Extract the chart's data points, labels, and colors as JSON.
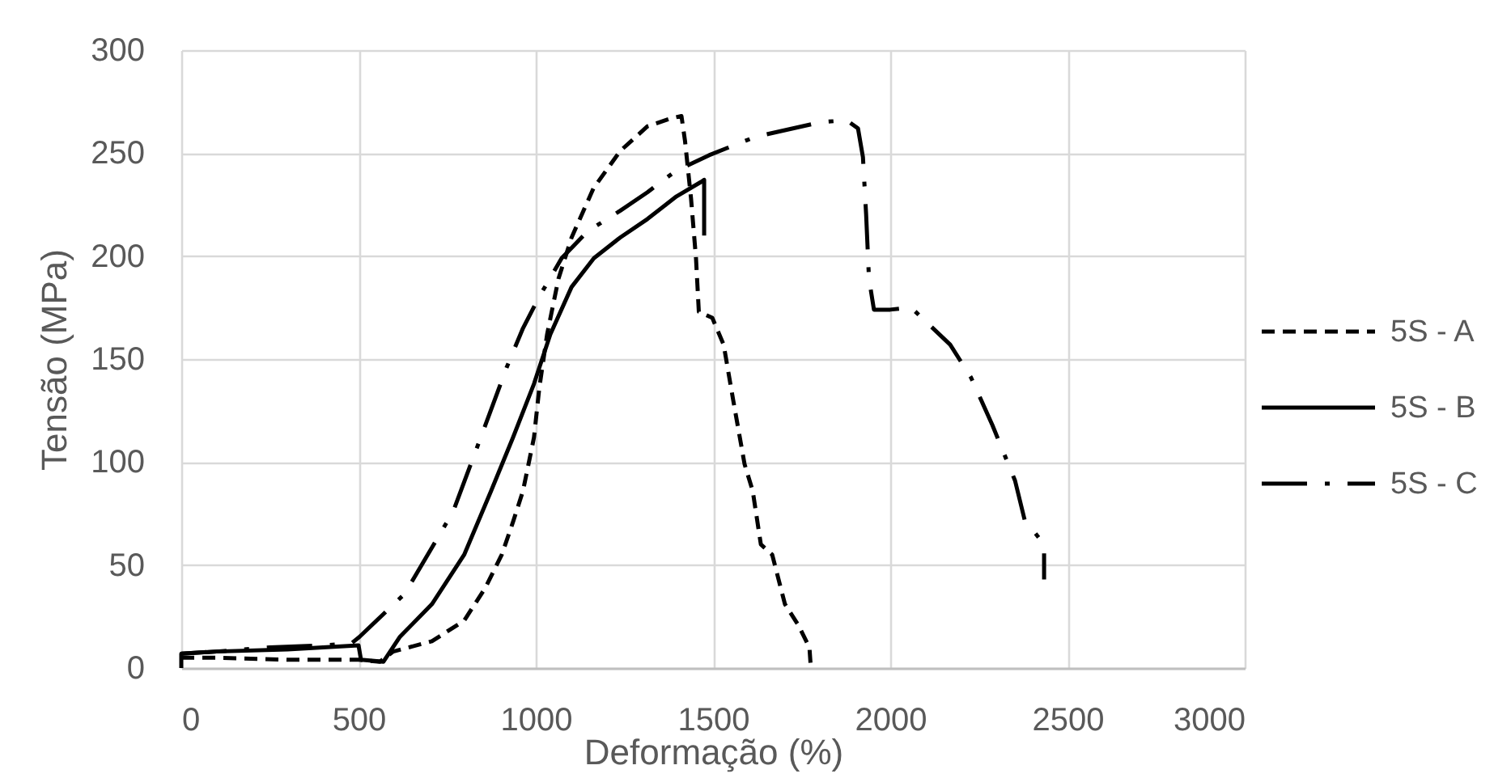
{
  "chart_data": {
    "type": "line",
    "xlabel": "Deformação (%)",
    "ylabel": "Tensão (MPa)",
    "xlim": [
      0,
      3000
    ],
    "ylim": [
      0,
      300
    ],
    "xticks": [
      0,
      500,
      1000,
      1500,
      2000,
      2500,
      3000
    ],
    "yticks": [
      0,
      50,
      100,
      150,
      200,
      250,
      300
    ],
    "grid": true,
    "legend": "right",
    "series": [
      {
        "name": "5S - A",
        "color": "#000000",
        "line_style": "dashed",
        "x": [
          0,
          100,
          300,
          500,
          560,
          598,
          707,
          798,
          858,
          904,
          936,
          964,
          995,
          1010,
          1032,
          1064,
          1101,
          1163,
          1238,
          1315,
          1384,
          1411,
          1421,
          1438,
          1452,
          1460,
          1498,
          1530,
          1557,
          1589,
          1612,
          1635,
          1667,
          1703,
          1740,
          1772,
          1776
        ],
        "values": [
          5,
          5,
          4,
          4,
          3,
          8,
          13,
          23,
          39,
          55,
          71,
          86,
          112,
          136,
          162,
          189,
          209,
          233,
          251,
          263,
          267,
          268,
          256,
          228,
          199,
          173,
          170,
          157,
          130,
          99,
          86,
          60,
          55,
          31,
          21,
          10,
          0
        ]
      },
      {
        "name": "5S - B",
        "color": "#000000",
        "line_style": "solid",
        "x": [
          0,
          0,
          100,
          300,
          500,
          507,
          570,
          616,
          707,
          798,
          874,
          936,
          995,
          1041,
          1101,
          1164,
          1238,
          1315,
          1397,
          1466,
          1475,
          1475
        ],
        "values": [
          0,
          7,
          8,
          9,
          11,
          4,
          3,
          15,
          31,
          55,
          86,
          112,
          138,
          162,
          185,
          199,
          209,
          218,
          229,
          236,
          237,
          210
        ]
      },
      {
        "name": "5S - C",
        "color": "#000000",
        "line_style": "dashdot",
        "x": [
          0,
          100,
          250,
          400,
          480,
          502,
          630,
          767,
          858,
          918,
          964,
          1009,
          1073,
          1146,
          1238,
          1315,
          1392,
          1489,
          1621,
          1803,
          1877,
          1909,
          1923,
          1932,
          1940,
          1954,
          2000,
          2059,
          2169,
          2228,
          2288,
          2352,
          2379,
          2434,
          2434
        ],
        "values": [
          7,
          8,
          10,
          11,
          12,
          15,
          36,
          76,
          118,
          146,
          165,
          180,
          199,
          212,
          222,
          231,
          241,
          249,
          258,
          265,
          266,
          262,
          248,
          220,
          189,
          174,
          174,
          175,
          157,
          141,
          118,
          91,
          72,
          60,
          43
        ]
      }
    ]
  }
}
